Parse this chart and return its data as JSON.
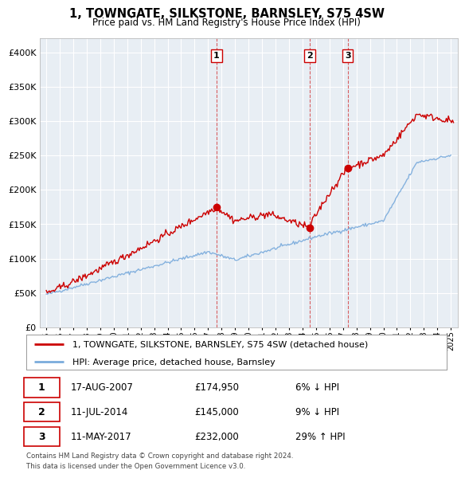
{
  "title": "1, TOWNGATE, SILKSTONE, BARNSLEY, S75 4SW",
  "subtitle": "Price paid vs. HM Land Registry's House Price Index (HPI)",
  "legend_property": "1, TOWNGATE, SILKSTONE, BARNSLEY, S75 4SW (detached house)",
  "legend_hpi": "HPI: Average price, detached house, Barnsley",
  "sales": [
    {
      "label": "1",
      "date": "17-AUG-2007",
      "price": 174950,
      "pct": "6%",
      "dir": "↓",
      "x": 2007.63
    },
    {
      "label": "2",
      "date": "11-JUL-2014",
      "price": 145000,
      "pct": "9%",
      "dir": "↓",
      "x": 2014.53
    },
    {
      "label": "3",
      "date": "11-MAY-2017",
      "price": 232000,
      "pct": "29%",
      "dir": "↑",
      "x": 2017.36
    }
  ],
  "footer1": "Contains HM Land Registry data © Crown copyright and database right 2024.",
  "footer2": "This data is licensed under the Open Government Licence v3.0.",
  "property_color": "#cc0000",
  "hpi_color": "#7aabdc",
  "vline_color": "#cc0000",
  "background_color": "#e8eef4",
  "ylim": [
    0,
    420000
  ],
  "yticks": [
    0,
    50000,
    100000,
    150000,
    200000,
    250000,
    300000,
    350000,
    400000
  ],
  "xlim": [
    1994.5,
    2025.5
  ]
}
